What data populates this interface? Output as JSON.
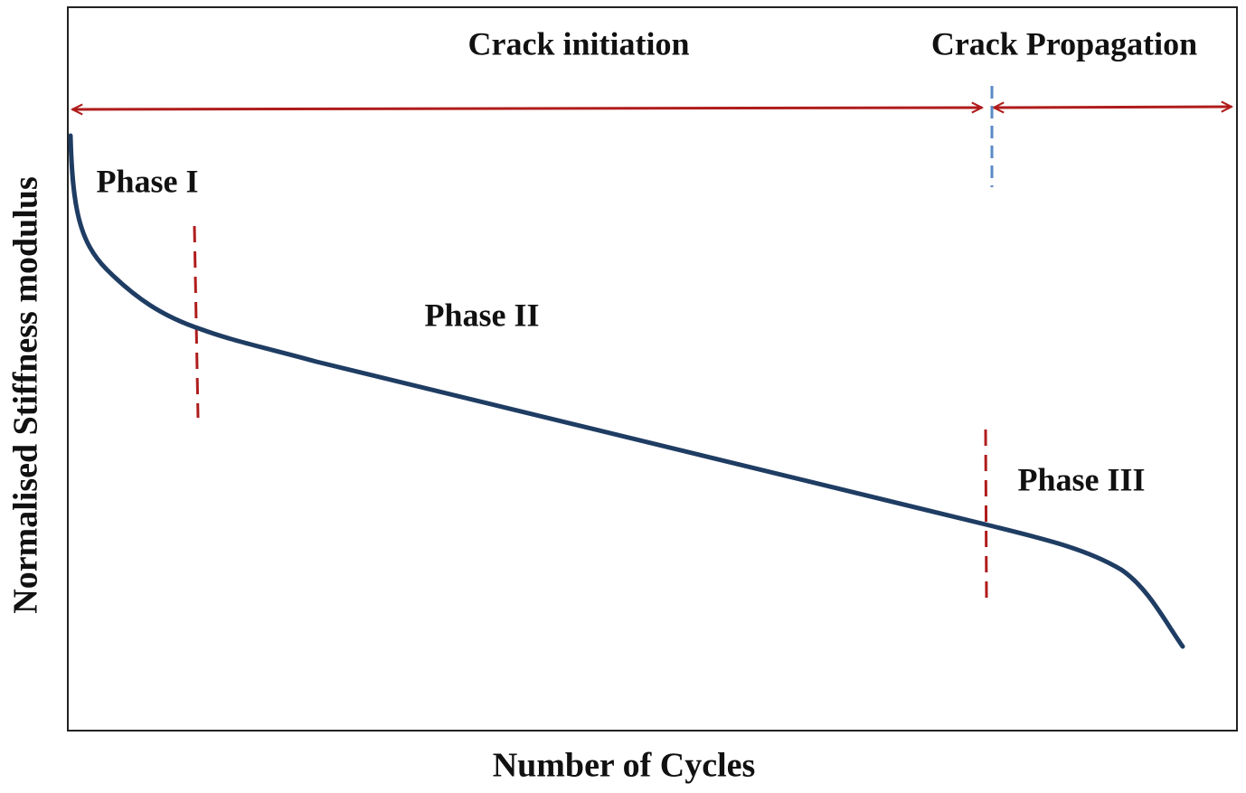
{
  "title_left": "Crack initiation",
  "title_right": "Crack Propagation",
  "phases": [
    "Phase I",
    "Phase II",
    "Phase III"
  ],
  "x_axis_label": "Number of Cycles",
  "y_axis_label": "Normalised Stiffness modulus"
}
